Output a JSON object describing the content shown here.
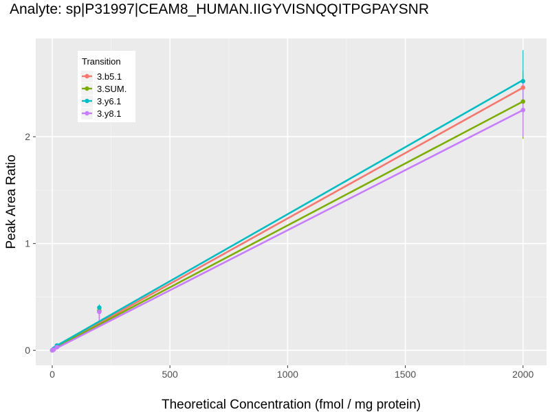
{
  "chart_data": {
    "type": "line",
    "title": "Analyte: sp|P31997|CEAM8_HUMAN.IIGYVISNQQITPGPAYSNR",
    "xlabel": "Theoretical Concentration (fmol / mg protein)",
    "ylabel": "Peak Area Ratio",
    "xlim": [
      -70,
      2100
    ],
    "ylim": [
      -0.14,
      2.92
    ],
    "x_ticks": [
      0,
      500,
      1000,
      1500,
      2000
    ],
    "x_tick_labels": [
      "0",
      "500",
      "1000",
      "1500",
      "2000"
    ],
    "y_ticks": [
      0,
      1,
      2
    ],
    "y_tick_labels": [
      "0",
      "1",
      "2"
    ],
    "grid": true,
    "legend": {
      "title": "Transition",
      "position": "top-left"
    },
    "series": [
      {
        "name": "3.b5.1",
        "color": "#F8766D",
        "points": [
          {
            "x": 0,
            "y": 0.0
          },
          {
            "x": 2,
            "y": 0.003
          },
          {
            "x": 6,
            "y": 0.008
          },
          {
            "x": 20,
            "y": 0.035
          },
          {
            "x": 200,
            "y": 0.37
          },
          {
            "x": 2000,
            "y": 2.46
          }
        ],
        "fit": {
          "x": [
            0,
            2000
          ],
          "y": [
            0.01,
            2.46
          ]
        },
        "error": [
          {
            "x": 200,
            "low": 0.27,
            "high": 0.42
          },
          {
            "x": 2000,
            "low": 2.2,
            "high": 2.62
          }
        ]
      },
      {
        "name": "3.SUM.",
        "color": "#7CAE00",
        "points": [
          {
            "x": 0,
            "y": 0.0
          },
          {
            "x": 2,
            "y": 0.003
          },
          {
            "x": 6,
            "y": 0.008
          },
          {
            "x": 20,
            "y": 0.04
          },
          {
            "x": 200,
            "y": 0.37
          },
          {
            "x": 2000,
            "y": 2.33
          }
        ],
        "fit": {
          "x": [
            0,
            2000
          ],
          "y": [
            0.01,
            2.33
          ]
        },
        "error": [
          {
            "x": 200,
            "low": 0.27,
            "high": 0.42
          },
          {
            "x": 2000,
            "low": 1.98,
            "high": 2.6
          }
        ]
      },
      {
        "name": "3.y6.1",
        "color": "#00BFC4",
        "points": [
          {
            "x": 0,
            "y": 0.0
          },
          {
            "x": 2,
            "y": 0.004
          },
          {
            "x": 6,
            "y": 0.01
          },
          {
            "x": 20,
            "y": 0.045
          },
          {
            "x": 200,
            "y": 0.4
          },
          {
            "x": 2000,
            "y": 2.52
          }
        ],
        "fit": {
          "x": [
            0,
            2000
          ],
          "y": [
            0.02,
            2.53
          ]
        },
        "error": [
          {
            "x": 200,
            "low": 0.3,
            "high": 0.43
          },
          {
            "x": 2000,
            "low": 2.3,
            "high": 2.81
          }
        ]
      },
      {
        "name": "3.y8.1",
        "color": "#C77CFF",
        "points": [
          {
            "x": 0,
            "y": 0.0
          },
          {
            "x": 2,
            "y": 0.002
          },
          {
            "x": 6,
            "y": 0.006
          },
          {
            "x": 20,
            "y": 0.03
          },
          {
            "x": 200,
            "y": 0.36
          },
          {
            "x": 2000,
            "y": 2.25
          }
        ],
        "fit": {
          "x": [
            0,
            2000
          ],
          "y": [
            0.0,
            2.25
          ]
        },
        "error": [
          {
            "x": 200,
            "low": 0.27,
            "high": 0.4
          },
          {
            "x": 2000,
            "low": 2.0,
            "high": 2.5
          }
        ]
      }
    ]
  }
}
